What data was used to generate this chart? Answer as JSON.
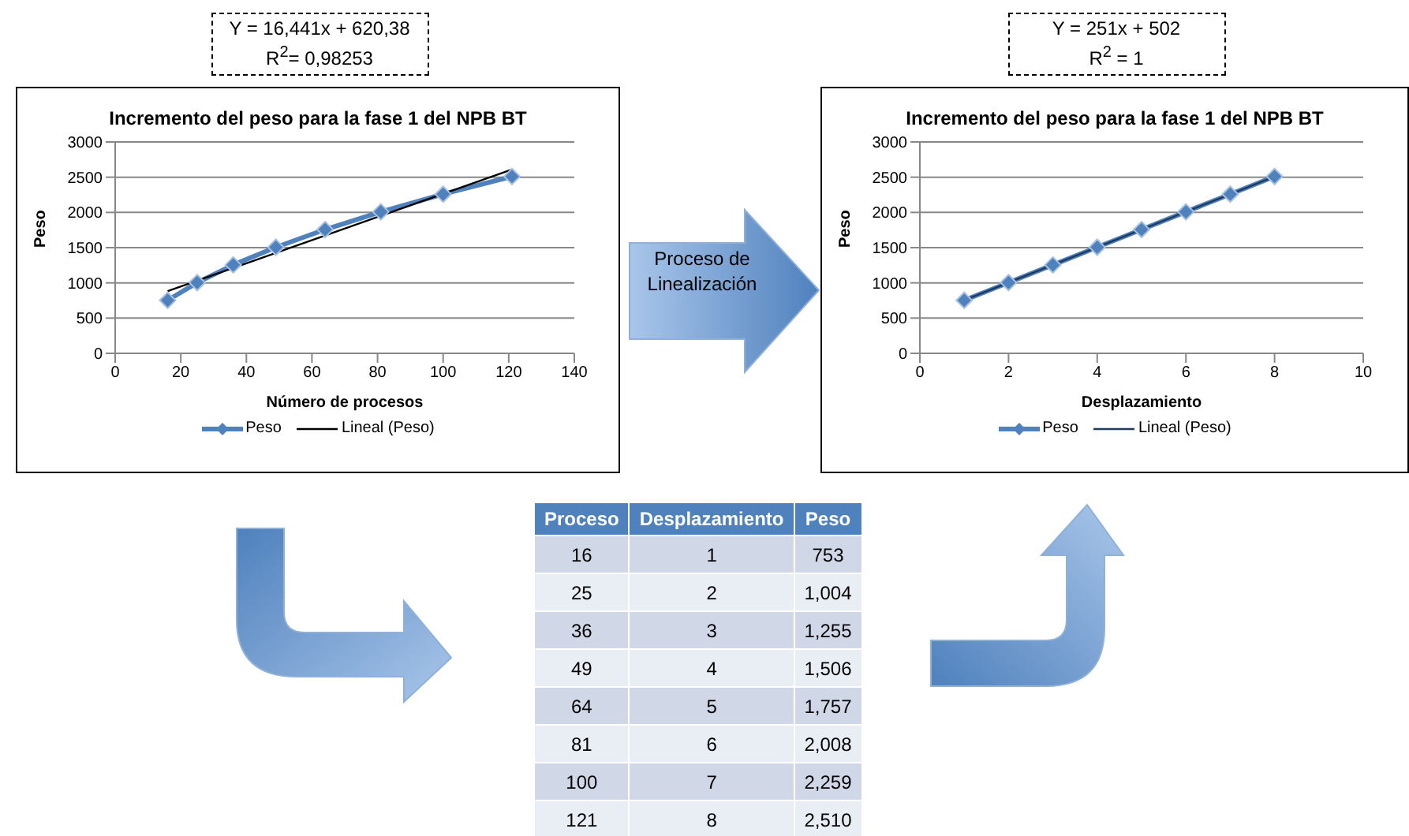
{
  "chart_data": [
    {
      "type": "line",
      "title": "Incremento del peso para la fase 1 del NPB BT",
      "xlabel": "Número de procesos",
      "ylabel": "Peso",
      "x": [
        16,
        25,
        36,
        49,
        64,
        81,
        100,
        121
      ],
      "xlim": [
        0,
        140
      ],
      "xticks": [
        0,
        20,
        40,
        60,
        80,
        100,
        120,
        140
      ],
      "ylim": [
        0,
        3000
      ],
      "yticks": [
        0,
        500,
        1000,
        1500,
        2000,
        2500,
        3000
      ],
      "grid": "y",
      "legend": "bottom",
      "annotations": [
        "Y = 16,441x + 620,38",
        "R$^{2}$= 0,98253"
      ],
      "series": [
        {
          "name": "Peso",
          "color": "#4f81bd",
          "marker": "diamond",
          "values": [
            753,
            1004,
            1255,
            1506,
            1757,
            2008,
            2259,
            2510
          ]
        },
        {
          "name": "Lineal (Peso)",
          "color": "#000000",
          "marker": "none",
          "x": [
            16,
            121
          ],
          "values": [
            883,
            2610
          ]
        }
      ]
    },
    {
      "type": "line",
      "title": "Incremento del peso para la fase 1 del NPB BT",
      "xlabel": "Desplazamiento",
      "ylabel": "Peso",
      "x": [
        1,
        2,
        3,
        4,
        5,
        6,
        7,
        8
      ],
      "xlim": [
        0,
        10
      ],
      "xticks": [
        0,
        2,
        4,
        6,
        8,
        10
      ],
      "ylim": [
        0,
        3000
      ],
      "yticks": [
        0,
        500,
        1000,
        1500,
        2000,
        2500,
        3000
      ],
      "grid": "y",
      "legend": "bottom",
      "annotations": [
        "Y = 251x + 502",
        "R$^{2}$ = 1"
      ],
      "series": [
        {
          "name": "Peso",
          "color": "#4f81bd",
          "marker": "diamond",
          "values": [
            753,
            1004,
            1255,
            1506,
            1757,
            2008,
            2259,
            2510
          ]
        },
        {
          "name": "Lineal (Peso)",
          "color": "#1f3a5f",
          "marker": "none",
          "x": [
            1,
            8
          ],
          "values": [
            753,
            2510
          ]
        }
      ]
    },
    {
      "type": "other",
      "xlabel": "Proceso",
      "categories": [
        "16",
        "25",
        "36",
        "49",
        "64",
        "81",
        "100",
        "121"
      ],
      "annotations": [
        "Proceso de Linealización"
      ],
      "series": [
        {
          "name": "Desplazamiento",
          "colors": [
            "#d0d8e8",
            "#e9edf4",
            "#d0d8e8",
            "#e9edf4",
            "#d0d8e8",
            "#e9edf4",
            "#d0d8e8",
            "#e9edf4"
          ],
          "values": [
            1,
            2,
            3,
            4,
            5,
            6,
            7,
            8
          ],
          "value_labels": [
            "1",
            "2",
            "3",
            "4",
            "5",
            "6",
            "7",
            "8"
          ]
        },
        {
          "name": "Peso",
          "colors": [
            "#d0d8e8",
            "#e9edf4",
            "#d0d8e8",
            "#e9edf4",
            "#d0d8e8",
            "#e9edf4",
            "#d0d8e8",
            "#e9edf4"
          ],
          "values": [
            753,
            1004,
            1255,
            1506,
            1757,
            2008,
            2259,
            2510
          ],
          "value_labels": [
            "753",
            "1,004",
            "1,255",
            "1,506",
            "1,757",
            "2,008",
            "2,259",
            "2,510"
          ]
        }
      ]
    }
  ]
}
